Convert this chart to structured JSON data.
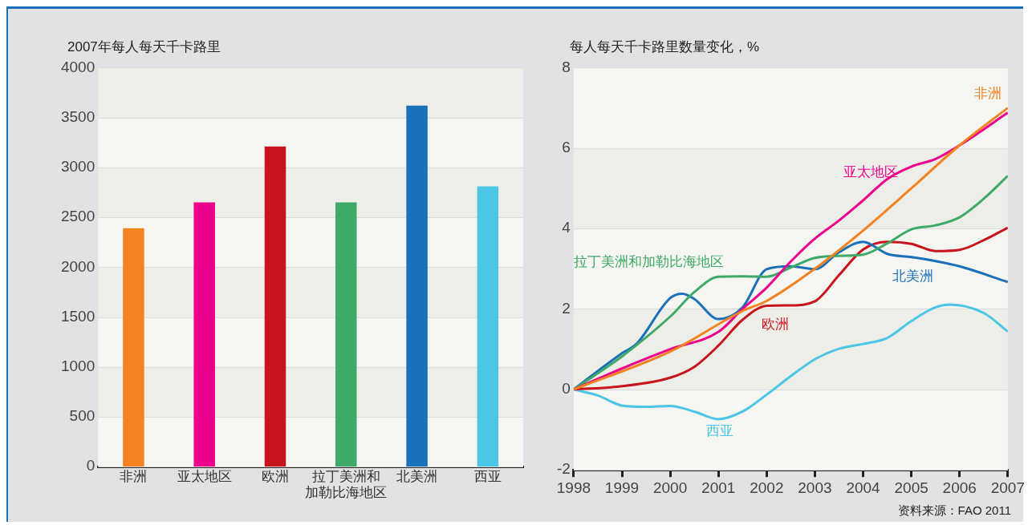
{
  "chart_data": [
    {
      "type": "bar",
      "ylabel": "2007年每人每天千卡路里",
      "categories": [
        "非洲",
        "亚太地区",
        "欧洲",
        "拉丁美洲和加勒比海地区",
        "北美洲",
        "西亚"
      ],
      "values": [
        2390,
        2650,
        3210,
        2650,
        3620,
        2810
      ],
      "colors": [
        "#f38221",
        "#ec008c",
        "#c8141c",
        "#3faa67",
        "#1b71b9",
        "#4bc6e6"
      ],
      "ylim": [
        0,
        4000
      ],
      "yticks": [
        0,
        500,
        1000,
        1500,
        2000,
        2500,
        3000,
        3500,
        4000
      ],
      "grid": "y"
    },
    {
      "type": "line",
      "ylabel": "每人每天千卡路里数量变化，%",
      "xlim": [
        1998,
        2007
      ],
      "xticks": [
        1998,
        1999,
        2000,
        2001,
        2002,
        2003,
        2004,
        2005,
        2006,
        2007
      ],
      "ylim": [
        -2,
        8
      ],
      "yticks": [
        -2,
        0,
        2,
        4,
        6,
        8
      ],
      "grid": "y",
      "annotations": [
        "资料来源：FAO 2011"
      ],
      "series": [
        {
          "name": "非洲",
          "color": "#f38221",
          "x": [
            1998,
            2000,
            2001.5,
            2002,
            2003,
            2004,
            2005,
            2006,
            2007
          ],
          "values": [
            0,
            0.94,
            1.95,
            2.2,
            3.0,
            3.95,
            5.0,
            6.07,
            7.0
          ]
        },
        {
          "name": "亚太地区",
          "color": "#ec008c",
          "x": [
            1998,
            1999,
            2000,
            2001,
            2001.5,
            2002,
            2002.5,
            2003,
            2003.5,
            2004,
            2004.5,
            2005,
            2005.5,
            2006,
            2007
          ],
          "values": [
            0,
            0.52,
            1.0,
            1.43,
            2.0,
            2.53,
            3.18,
            3.75,
            4.2,
            4.7,
            5.23,
            5.54,
            5.73,
            6.07,
            6.88
          ]
        },
        {
          "name": "拉丁美洲和加勒比海地区",
          "color": "#3faa67",
          "x": [
            1998,
            1999,
            2000,
            2000.5,
            2001,
            2001.5,
            2002,
            2002.5,
            2003,
            2003.5,
            2004,
            2004.5,
            2005,
            2005.5,
            2006,
            2006.5,
            2007
          ],
          "values": [
            0,
            0.82,
            1.81,
            2.42,
            2.8,
            2.81,
            2.8,
            3.03,
            3.27,
            3.32,
            3.35,
            3.63,
            3.98,
            4.08,
            4.28,
            4.74,
            5.31
          ]
        },
        {
          "name": "北美洲",
          "color": "#1b71b9",
          "x": [
            1998,
            1999,
            1999.3,
            2000,
            2000.25,
            2000.5,
            2001,
            2001.5,
            2002,
            2002.5,
            2003,
            2003.5,
            2004,
            2004.5,
            2005,
            2005.5,
            2006,
            2007
          ],
          "values": [
            0,
            0.9,
            1.13,
            2.27,
            2.38,
            2.25,
            1.75,
            2.04,
            2.99,
            3.06,
            2.99,
            3.41,
            3.67,
            3.37,
            3.29,
            3.19,
            3.06,
            2.67
          ]
        },
        {
          "name": "欧洲",
          "color": "#c8141c",
          "x": [
            1998,
            1999,
            2000,
            2000.5,
            2001,
            2001.5,
            2002,
            2002.5,
            2003,
            2003.5,
            2004,
            2004.5,
            2005,
            2005.5,
            2006,
            2006.5,
            2007
          ],
          "values": [
            0,
            0.08,
            0.29,
            0.56,
            1.09,
            1.73,
            2.08,
            2.09,
            2.19,
            2.84,
            3.48,
            3.67,
            3.62,
            3.44,
            3.47,
            3.71,
            4.02
          ]
        },
        {
          "name": "西亚",
          "color": "#4bc6e6",
          "x": [
            1998,
            1998.5,
            1999,
            1999.5,
            2000,
            2000.5,
            2001,
            2001.5,
            2002,
            2002.5,
            2003,
            2003.5,
            2004,
            2004.5,
            2005,
            2005.5,
            2005.8,
            2006.5,
            2007
          ],
          "values": [
            0,
            -0.15,
            -0.4,
            -0.43,
            -0.41,
            -0.55,
            -0.74,
            -0.55,
            -0.13,
            0.33,
            0.75,
            1.01,
            1.13,
            1.28,
            1.7,
            2.04,
            2.11,
            1.9,
            1.44
          ]
        }
      ]
    }
  ]
}
